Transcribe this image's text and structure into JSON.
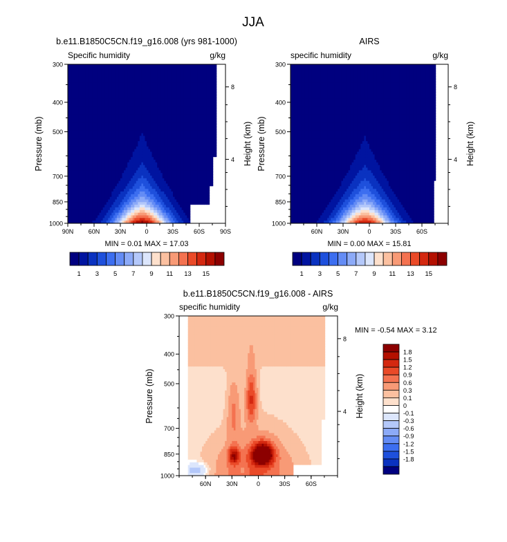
{
  "page_title": "JJA",
  "chart_data": [
    {
      "type": "heatmap",
      "title": "b.e11.B1850C5CN.f19_g16.008 (yrs 981-1000)",
      "left_label": "Specific humidity",
      "units": "g/kg",
      "ylabel": "Pressure (mb)",
      "ylabel_right": "Height (km)",
      "pressure_ticks": [
        "300",
        "400",
        "500",
        "700",
        "850",
        "1000"
      ],
      "height_ticks": [
        "8",
        "4"
      ],
      "lat_ticks": [
        "90N",
        "60N",
        "30N",
        "0",
        "30S",
        "60S",
        "90S"
      ],
      "stats": "MIN =  0.01  MAX = 17.03",
      "colorbar_labels": [
        "1",
        "3",
        "5",
        "7",
        "9",
        "11",
        "13",
        "15"
      ],
      "vmin": 0.01,
      "vmax": 17.03,
      "peak_lat": 5,
      "peak_value": 17.03,
      "missing": "no data below ~870 mb from 50S to 70S; none from 75S poleward above the lower levels"
    },
    {
      "type": "heatmap",
      "title": "AIRS",
      "left_label": "specific humidity",
      "units": "g/kg",
      "ylabel": "Pressure (mb)",
      "ylabel_right": "Height (km)",
      "pressure_ticks": [
        "300",
        "400",
        "500",
        "700",
        "850",
        "1000"
      ],
      "height_ticks": [
        "8",
        "4"
      ],
      "lat_ticks": [
        "60N",
        "30N",
        "0",
        "30S",
        "60S"
      ],
      "stats": "MIN =  0.00  MAX = 15.81",
      "colorbar_labels": [
        "1",
        "3",
        "5",
        "7",
        "9",
        "11",
        "13",
        "15"
      ],
      "vmin": 0.0,
      "vmax": 15.81,
      "peak_lat": 5,
      "peak_value": 15.81,
      "missing": "no data poleward of about 75S"
    },
    {
      "type": "heatmap",
      "title": "b.e11.B1850C5CN.f19_g16.008 - AIRS",
      "left_label": "specific humidity",
      "units": "g/kg",
      "ylabel": "Pressure (mb)",
      "ylabel_right": "Height (km)",
      "pressure_ticks": [
        "300",
        "400",
        "500",
        "700",
        "850",
        "1000"
      ],
      "height_ticks": [
        "8",
        "4"
      ],
      "lat_ticks": [
        "60N",
        "30N",
        "0",
        "30S",
        "60S"
      ],
      "stats": "MIN = -0.54  MAX =  3.12",
      "colorbar_labels": [
        "1.8",
        "1.5",
        "1.2",
        "0.9",
        "0.6",
        "0.3",
        "0.1",
        "0",
        "-0.1",
        "-0.3",
        "-0.6",
        "-0.9",
        "-1.2",
        "-1.5",
        "-1.8"
      ],
      "vmin": -0.54,
      "vmax": 3.12,
      "peak_lat": 0,
      "peak_value": 3.12
    }
  ],
  "colors": {
    "abs_scale": [
      "#00007f",
      "#0014a0",
      "#0a32c0",
      "#1e50dc",
      "#3c6ef0",
      "#648cf5",
      "#8caaf8",
      "#b4c8fa",
      "#dce6fc",
      "#fde0cc",
      "#fbc0a0",
      "#f89a76",
      "#f47250",
      "#ea4a28",
      "#d42810",
      "#b41000",
      "#8c0000"
    ],
    "diff_scale": [
      "#8c0000",
      "#b41000",
      "#d42810",
      "#ea4a28",
      "#f47250",
      "#f89a76",
      "#fbc0a0",
      "#fde0cc",
      "#ffffff",
      "#dce6fc",
      "#b4c8fa",
      "#8caaf8",
      "#648cf5",
      "#3c6ef0",
      "#1e50dc",
      "#0a32c0",
      "#00007f"
    ]
  }
}
